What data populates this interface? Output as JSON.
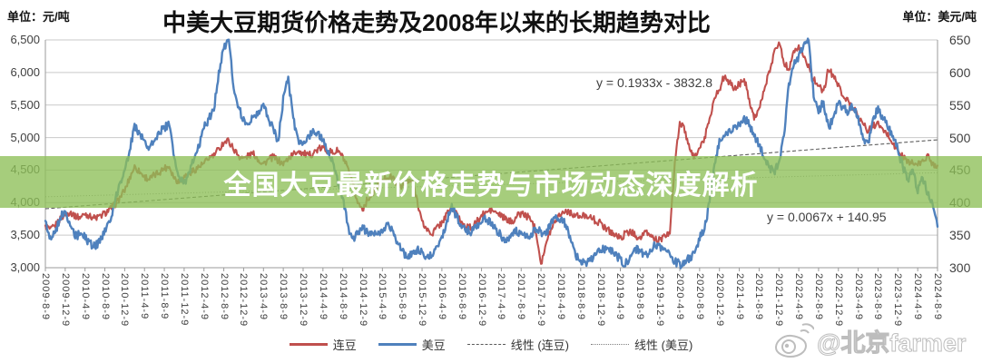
{
  "title": {
    "prefix": "中美大豆期货价格走势及",
    "bold": "2008",
    "suffix": "年以来的长期趋势对比"
  },
  "units": {
    "left": "单位：元/吨",
    "right": "单位：美元/吨"
  },
  "banner": {
    "text": "全国大豆最新价格走势与市场动态深度解析",
    "bg_color": "#8dbf57",
    "text_color": "#ffffff"
  },
  "annotations": [
    {
      "text": "y = 0.1933x - 3832.8"
    },
    {
      "text": "y = 0.0067x + 140.95"
    }
  ],
  "legend": [
    {
      "label": "连豆",
      "color": "#C0504D",
      "style": "solid"
    },
    {
      "label": "美豆",
      "color": "#4F81BD",
      "style": "solid"
    },
    {
      "label": "线性 (连豆)",
      "color": "#595959",
      "style": "dashed"
    },
    {
      "label": "线性 (美豆)",
      "color": "#7f7f7f",
      "style": "dotted"
    }
  ],
  "watermark": {
    "handle": "@北京farmer",
    "icon": "weibo-icon"
  },
  "chart_data": {
    "type": "line",
    "title": "中美大豆期货价格走势及2008年以来的长期趋势对比",
    "y_left": {
      "unit": "元/吨",
      "min": 3000,
      "max": 6500,
      "step": 500,
      "labels": [
        "6,500",
        "6,000",
        "5,500",
        "5,000",
        "4,500",
        "4,000",
        "3,500",
        "3,000"
      ]
    },
    "y_right": {
      "unit": "美元/吨",
      "min": 300,
      "max": 650,
      "step": 50,
      "labels": [
        "650",
        "600",
        "550",
        "500",
        "450",
        "400",
        "350",
        "300"
      ]
    },
    "x_tick_labels": [
      "2009-8-9",
      "2009-12-9",
      "2010-4-9",
      "2010-8-9",
      "2010-12-9",
      "2011-4-9",
      "2011-8-9",
      "2011-12-9",
      "2012-4-9",
      "2012-8-9",
      "2012-12-9",
      "2013-4-9",
      "2013-8-9",
      "2013-12-9",
      "2014-4-9",
      "2014-8-9",
      "2014-12-9",
      "2015-4-9",
      "2015-8-9",
      "2015-12-9",
      "2016-4-9",
      "2016-8-9",
      "2016-12-9",
      "2017-4-9",
      "2017-8-9",
      "2017-12-9",
      "2018-4-9",
      "2018-8-9",
      "2018-12-9",
      "2019-4-9",
      "2019-8-9",
      "2019-12-9",
      "2020-4-9",
      "2020-8-9",
      "2020-12-9",
      "2021-4-9",
      "2021-8-9",
      "2021-12-9",
      "2022-4-9",
      "2022-8-9",
      "2022-12-9",
      "2023-4-9",
      "2023-8-9",
      "2023-12-9",
      "2024-4-9",
      "2024-8-9"
    ],
    "grid": true,
    "legend_position": "bottom",
    "series": [
      {
        "name": "连豆",
        "axis": "left",
        "color": "#C0504D",
        "start": "2009-08",
        "freq": "monthly",
        "noise": 55,
        "values": [
          3650,
          3580,
          3640,
          3760,
          3820,
          3860,
          3800,
          3770,
          3830,
          3800,
          3760,
          3790,
          3840,
          3900,
          3960,
          4080,
          4180,
          4380,
          4560,
          4470,
          4400,
          4360,
          4420,
          4470,
          4530,
          4560,
          4380,
          4320,
          4400,
          4450,
          4500,
          4550,
          4600,
          4680,
          4730,
          4820,
          4930,
          4950,
          4820,
          4720,
          4680,
          4720,
          4760,
          4660,
          4600,
          4660,
          4700,
          4640,
          4590,
          4680,
          4740,
          4800,
          4760,
          4720,
          4760,
          4820,
          4840,
          4800,
          4760,
          4800,
          4700,
          4520,
          4280,
          4000,
          3900,
          4050,
          4150,
          4250,
          4330,
          4400,
          4380,
          4300,
          4260,
          4310,
          4330,
          4050,
          3700,
          3580,
          3520,
          3620,
          3700,
          3820,
          3930,
          3820,
          3700,
          3640,
          3600,
          3700,
          3800,
          3850,
          3890,
          3840,
          3800,
          3740,
          3700,
          3780,
          3840,
          3800,
          3740,
          3560,
          3070,
          3350,
          3600,
          3750,
          3830,
          3880,
          3850,
          3800,
          3770,
          3820,
          3780,
          3720,
          3680,
          3620,
          3560,
          3500,
          3460,
          3520,
          3560,
          3500,
          3460,
          3540,
          3500,
          3440,
          3430,
          3470,
          3550,
          4600,
          5250,
          5100,
          4800,
          4700,
          4850,
          4980,
          5300,
          5600,
          5750,
          5950,
          5850,
          5740,
          5820,
          5900,
          5600,
          5300,
          5450,
          5700,
          6000,
          6300,
          6480,
          6150,
          6050,
          6350,
          6400,
          6250,
          6100,
          5900,
          5780,
          5700,
          6050,
          5950,
          5800,
          5650,
          5550,
          5450,
          5350,
          5200,
          5100,
          5180,
          5220,
          5100,
          5050,
          4900,
          4800,
          4700,
          4640,
          4600,
          4580,
          4640,
          4720,
          4600,
          4570
        ]
      },
      {
        "name": "美豆",
        "axis": "right",
        "color": "#4F81BD",
        "start": "2009-08",
        "freq": "monthly",
        "noise": 6.5,
        "values": [
          372,
          345,
          352,
          378,
          385,
          362,
          348,
          352,
          346,
          338,
          332,
          340,
          358,
          368,
          400,
          432,
          448,
          482,
          518,
          505,
          492,
          485,
          498,
          508,
          515,
          522,
          468,
          438,
          428,
          448,
          468,
          488,
          518,
          528,
          545,
          600,
          640,
          648,
          575,
          545,
          528,
          518,
          532,
          540,
          552,
          528,
          512,
          495,
          560,
          590,
          530,
          495,
          490,
          500,
          512,
          505,
          495,
          478,
          460,
          430,
          408,
          365,
          345,
          352,
          362,
          355,
          352,
          348,
          356,
          364,
          360,
          338,
          325,
          318,
          322,
          328,
          324,
          318,
          320,
          332,
          348,
          372,
          395,
          378,
          362,
          358,
          355,
          362,
          372,
          375,
          368,
          358,
          348,
          342,
          348,
          358,
          352,
          348,
          352,
          358,
          355,
          352,
          368,
          380,
          375,
          368,
          340,
          320,
          312,
          306,
          312,
          320,
          326,
          330,
          328,
          322,
          312,
          305,
          318,
          330,
          324,
          318,
          326,
          335,
          332,
          330,
          322,
          310,
          305,
          308,
          315,
          320,
          345,
          360,
          400,
          460,
          495,
          505,
          510,
          515,
          520,
          530,
          520,
          505,
          488,
          470,
          455,
          448,
          460,
          500,
          580,
          610,
          625,
          640,
          648,
          565,
          540,
          555,
          515,
          530,
          555,
          545,
          540,
          548,
          530,
          495,
          490,
          530,
          545,
          530,
          515,
          505,
          480,
          455,
          435,
          448,
          418,
          438,
          415,
          400,
          363
        ]
      }
    ],
    "trendlines": [
      {
        "name": "线性 (连豆)",
        "equation": "y = 0.1933x - 3832.8",
        "axis": "left",
        "start_value": 3906,
        "end_value": 4965,
        "style": "dashed",
        "color": "#4d4d4d"
      },
      {
        "name": "线性 (美豆)",
        "equation": "y = 0.0067x + 140.95",
        "axis": "right",
        "start_value": 409,
        "end_value": 446,
        "style": "dotted",
        "color": "#808080"
      }
    ]
  }
}
